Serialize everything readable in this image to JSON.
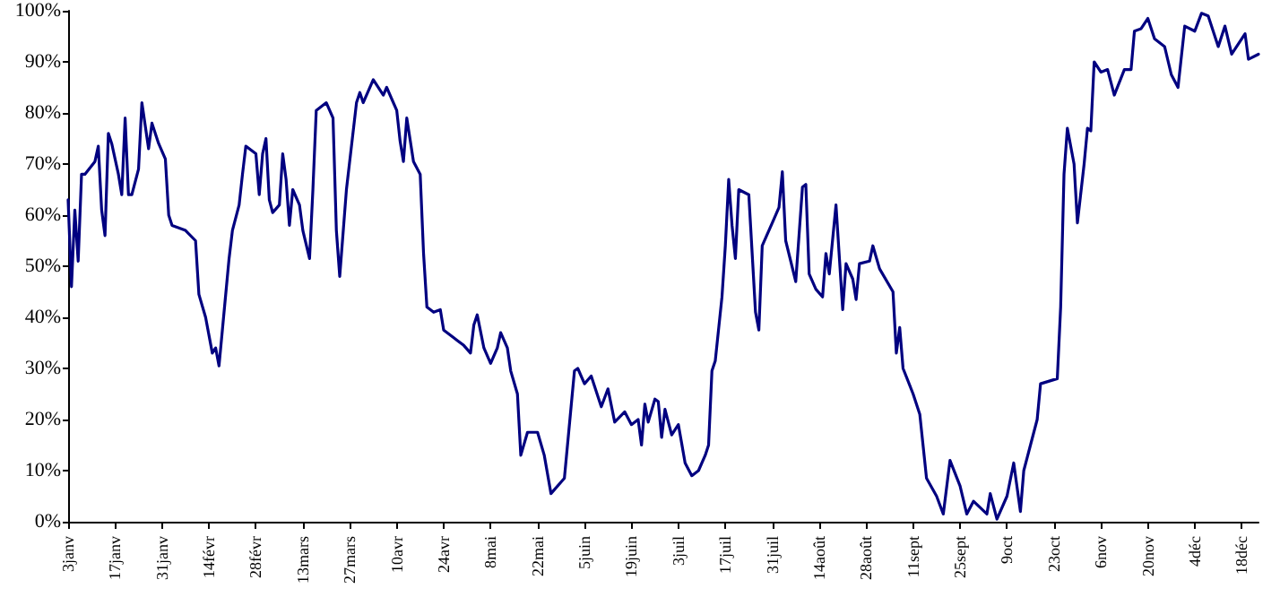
{
  "chart_data": {
    "type": "line",
    "line_style": "solid",
    "marker": "none",
    "grid": false,
    "xlim": [
      "--01-03",
      "--12-23"
    ],
    "xticks": [
      {
        "value": "--01-03",
        "label": "3janv"
      },
      {
        "value": "--01-17",
        "label": "17janv"
      },
      {
        "value": "--01-31",
        "label": "31janv"
      },
      {
        "value": "--02-14",
        "label": "14févr"
      },
      {
        "value": "--02-28",
        "label": "28févr"
      },
      {
        "value": "--03-13",
        "label": "13mars"
      },
      {
        "value": "--03-27",
        "label": "27mars"
      },
      {
        "value": "--04-10",
        "label": "10avr"
      },
      {
        "value": "--04-24",
        "label": "24avr"
      },
      {
        "value": "--05-08",
        "label": "8mai"
      },
      {
        "value": "--05-22",
        "label": "22mai"
      },
      {
        "value": "--06-05",
        "label": "5juin"
      },
      {
        "value": "--06-19",
        "label": "19juin"
      },
      {
        "value": "--07-03",
        "label": "3juil"
      },
      {
        "value": "--07-17",
        "label": "17juil"
      },
      {
        "value": "--07-31",
        "label": "31juil"
      },
      {
        "value": "--08-14",
        "label": "14août"
      },
      {
        "value": "--08-28",
        "label": "28août"
      },
      {
        "value": "--09-11",
        "label": "11sept"
      },
      {
        "value": "--09-25",
        "label": "25sept"
      },
      {
        "value": "--10-09",
        "label": "9oct"
      },
      {
        "value": "--10-23",
        "label": "23oct"
      },
      {
        "value": "--11-06",
        "label": "6nov"
      },
      {
        "value": "--11-20",
        "label": "20nov"
      },
      {
        "value": "--12-04",
        "label": "4déc"
      },
      {
        "value": "--12-18",
        "label": "18déc"
      }
    ],
    "ylim": [
      0,
      100
    ],
    "yticks": [
      {
        "value": 0,
        "label": "0%"
      },
      {
        "value": 10,
        "label": "10%"
      },
      {
        "value": 20,
        "label": "20%"
      },
      {
        "value": 30,
        "label": "30%"
      },
      {
        "value": 40,
        "label": "40%"
      },
      {
        "value": 50,
        "label": "50%"
      },
      {
        "value": 60,
        "label": "60%"
      },
      {
        "value": 70,
        "label": "70%"
      },
      {
        "value": 80,
        "label": "80%"
      },
      {
        "value": 90,
        "label": "90%"
      },
      {
        "value": 100,
        "label": "100%"
      }
    ],
    "x": [
      "--01-03",
      "--01-04",
      "--01-05",
      "--01-06",
      "--01-07",
      "--01-08",
      "--01-11",
      "--01-12",
      "--01-13",
      "--01-14",
      "--01-15",
      "--01-16",
      "--01-18",
      "--01-19",
      "--01-20",
      "--01-21",
      "--01-22",
      "--01-24",
      "--01-25",
      "--01-27",
      "--01-28",
      "--01-30",
      "--02-01",
      "--02-02",
      "--02-03",
      "--02-07",
      "--02-10",
      "--02-11",
      "--02-13",
      "--02-15",
      "--02-16",
      "--02-17",
      "--02-18",
      "--02-20",
      "--02-21",
      "--02-23",
      "--02-24",
      "--02-25",
      "--02-28",
      "--02-29",
      "--03-01",
      "--03-02",
      "--03-03",
      "--03-04",
      "--03-06",
      "--03-07",
      "--03-08",
      "--03-09",
      "--03-10",
      "--03-12",
      "--03-13",
      "--03-15",
      "--03-16",
      "--03-17",
      "--03-20",
      "--03-22",
      "--03-23",
      "--03-24",
      "--03-25",
      "--03-26",
      "--03-29",
      "--03-30",
      "--03-31",
      "--04-03",
      "--04-06",
      "--04-07",
      "--04-10",
      "--04-11",
      "--04-12",
      "--04-13",
      "--04-15",
      "--04-17",
      "--04-18",
      "--04-19",
      "--04-21",
      "--04-23",
      "--04-24",
      "--04-27",
      "--04-30",
      "--05-02",
      "--05-03",
      "--05-04",
      "--05-06",
      "--05-08",
      "--05-10",
      "--05-11",
      "--05-13",
      "--05-14",
      "--05-16",
      "--05-17",
      "--05-19",
      "--05-22",
      "--05-24",
      "--05-26",
      "--05-30",
      "--06-01",
      "--06-02",
      "--06-03",
      "--06-05",
      "--06-07",
      "--06-10",
      "--06-12",
      "--06-14",
      "--06-17",
      "--06-19",
      "--06-21",
      "--06-22",
      "--06-23",
      "--06-24",
      "--06-26",
      "--06-27",
      "--06-28",
      "--06-29",
      "--07-01",
      "--07-03",
      "--07-05",
      "--07-07",
      "--07-09",
      "--07-11",
      "--07-12",
      "--07-13",
      "--07-14",
      "--07-16",
      "--07-17",
      "--07-18",
      "--07-19",
      "--07-20",
      "--07-21",
      "--07-24",
      "--07-26",
      "--07-27",
      "--07-28",
      "--07-31",
      "--08-02",
      "--08-03",
      "--08-04",
      "--08-07",
      "--08-09",
      "--08-10",
      "--08-11",
      "--08-13",
      "--08-15",
      "--08-16",
      "--08-17",
      "--08-19",
      "--08-21",
      "--08-22",
      "--08-24",
      "--08-25",
      "--08-26",
      "--08-29",
      "--08-30",
      "--09-01",
      "--09-05",
      "--09-06",
      "--09-07",
      "--09-08",
      "--09-11",
      "--09-13",
      "--09-15",
      "--09-18",
      "--09-20",
      "--09-22",
      "--09-25",
      "--09-27",
      "--09-29",
      "--10-03",
      "--10-04",
      "--10-06",
      "--10-09",
      "--10-11",
      "--10-13",
      "--10-14",
      "--10-16",
      "--10-18",
      "--10-19",
      "--10-24",
      "--10-25",
      "--10-26",
      "--10-27",
      "--10-29",
      "--10-30",
      "--11-01",
      "--11-02",
      "--11-03",
      "--11-04",
      "--11-06",
      "--11-08",
      "--11-10",
      "--11-13",
      "--11-15",
      "--11-16",
      "--11-18",
      "--11-20",
      "--11-22",
      "--11-25",
      "--11-27",
      "--11-29",
      "--12-01",
      "--12-04",
      "--12-06",
      "--12-08",
      "--12-11",
      "--12-13",
      "--12-15",
      "--12-19",
      "--12-20",
      "--12-23"
    ],
    "series": [
      {
        "color": "#000080",
        "values": [
          63,
          46,
          61,
          51,
          68,
          68,
          70.5,
          73.5,
          61,
          56,
          76,
          74,
          68,
          64,
          79,
          64,
          64,
          69,
          82,
          73,
          78,
          74,
          71,
          60,
          58,
          57,
          55,
          44.5,
          40,
          33,
          34,
          30.5,
          37.5,
          51.5,
          57,
          62,
          68,
          73.5,
          72,
          64,
          72,
          75,
          63,
          60.5,
          62,
          72,
          67,
          58,
          65,
          62,
          57,
          51.5,
          65,
          80.5,
          82,
          79,
          57,
          48,
          56.5,
          65,
          82,
          84,
          82,
          86.5,
          83.5,
          85,
          80.5,
          74.5,
          70.5,
          79,
          70.5,
          68,
          52.5,
          42,
          41,
          41.5,
          37.5,
          36,
          34.5,
          33,
          38.5,
          40.5,
          34,
          31,
          34,
          37,
          34,
          29.5,
          25,
          13,
          17.5,
          17.5,
          13,
          5.5,
          8.5,
          22.5,
          29.5,
          30,
          27,
          28.5,
          22.5,
          26,
          19.5,
          21.5,
          19,
          20,
          15,
          23,
          19.5,
          24,
          23.5,
          16.5,
          22,
          17,
          19,
          11.5,
          9,
          10,
          13,
          15,
          29.5,
          31.5,
          44,
          54,
          67,
          58,
          51.5,
          65,
          64,
          41,
          37.5,
          54,
          58.5,
          61.5,
          68.5,
          55,
          47,
          65.5,
          66,
          48.5,
          45.5,
          44,
          52.5,
          48.5,
          62,
          41.5,
          50.5,
          47.5,
          43.5,
          50.5,
          51,
          54,
          49.5,
          45,
          33,
          38,
          30,
          25,
          21,
          8.5,
          5,
          1.5,
          12,
          7,
          1.5,
          4,
          1.5,
          5.5,
          0.5,
          5,
          11.5,
          2,
          10,
          15,
          20,
          27,
          28,
          42,
          68,
          77,
          70,
          58.5,
          70,
          77,
          76.5,
          90,
          88,
          88.5,
          83.5,
          88.5,
          88.5,
          96,
          96.5,
          98.5,
          94.5,
          93,
          87.5,
          85,
          97,
          96,
          99.5,
          99,
          93,
          97,
          91.5,
          95.5,
          90.5,
          91.5
        ]
      }
    ]
  }
}
